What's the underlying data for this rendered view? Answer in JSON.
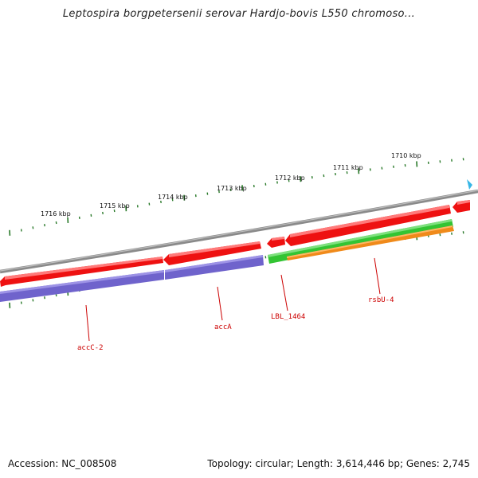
{
  "title": "Leptospira borgpetersenii serovar Hardjo-bovis L550 chromoso...",
  "footer": {
    "accession": "Accession: NC_008508",
    "summary": "Topology: circular; Length: 3,614,446 bp; Genes: 2,745"
  },
  "ruler_labels": [
    "1716 kbp",
    "1715 kbp",
    "1714 kbp",
    "1713 kbp",
    "1712 kbp",
    "1711 kbp",
    "1710 kbp"
  ],
  "gene_labels": [
    "accC-2",
    "accA",
    "LBL_1464",
    "rsbU-4"
  ],
  "colors": {
    "backbone": "#8a8a8a",
    "forward_gene": "#ee1111",
    "reverse_gene": "#6f63cc",
    "green_feature": "#33c433",
    "orange_feature": "#f08a1a",
    "tick": "#2a7a2a",
    "label": "#cc0000",
    "cyan_marker": "#37b6e6"
  },
  "icons": {
    "edge_marker": "cyan-triangle-icon"
  }
}
